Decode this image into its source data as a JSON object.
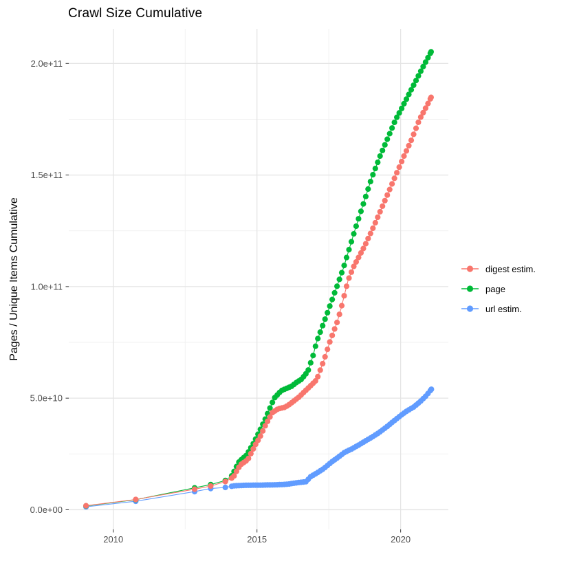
{
  "title": "Crawl Size Cumulative",
  "y_axis": {
    "title": "Pages / Unique Items Cumulative",
    "tick_labels": [
      "0.0e+00",
      "5.0e+10",
      "1.0e+11",
      "1.5e+11",
      "2.0e+11"
    ]
  },
  "x_axis": {
    "tick_labels": [
      "2010",
      "2015",
      "2020"
    ]
  },
  "legend": [
    {
      "label": "digest estim."
    },
    {
      "label": "page"
    },
    {
      "label": "url estim."
    }
  ],
  "chart_data": {
    "type": "line",
    "title": "Crawl Size Cumulative",
    "xlabel": "",
    "ylabel": "Pages / Unique Items Cumulative",
    "xlim": [
      2008.45,
      2021.66
    ],
    "ylim": [
      -8800000000.0,
      215500000000.0
    ],
    "x_major_ticks": [
      2010,
      2015,
      2020
    ],
    "x_minor_ticks": [
      2012.5,
      2017.5
    ],
    "y_major_ticks": [
      0,
      50000000000.0,
      100000000000.0,
      150000000000.0,
      200000000000.0
    ],
    "y_minor_ticks": [
      25000000000.0,
      75000000000.0,
      125000000000.0,
      175000000000.0
    ],
    "grid": true,
    "legend_position": "right",
    "point_style": {
      "radius": 4.1,
      "monthly_dot_start": 2014.12,
      "dot_interval_years": 0.0833
    },
    "colors": {
      "digest": "#F8766D",
      "page": "#00BA38",
      "url": "#619CFF"
    },
    "series": [
      {
        "name": "digest estim.",
        "color": "#F8766D",
        "points": [
          [
            2009.05,
            1800000000.0
          ],
          [
            2010.78,
            4600000000.0
          ],
          [
            2012.83,
            9200000000.0
          ],
          [
            2013.39,
            10600000000.0
          ],
          [
            2013.9,
            12600000000.0
          ],
          [
            2014.18,
            14600000000.0
          ],
          [
            2014.29,
            17300000000.0
          ],
          [
            2014.42,
            20100000000.0
          ],
          [
            2014.68,
            22400000000.0
          ],
          [
            2014.8,
            25500000000.0
          ],
          [
            2014.94,
            29000000000.0
          ],
          [
            2015.1,
            32500000000.0
          ],
          [
            2015.3,
            38000000000.0
          ],
          [
            2015.54,
            43600000000.0
          ],
          [
            2015.73,
            45200000000.0
          ],
          [
            2015.97,
            45900000000.0
          ],
          [
            2016.13,
            47200000000.0
          ],
          [
            2016.29,
            48800000000.0
          ],
          [
            2016.47,
            50600000000.0
          ],
          [
            2016.65,
            52900000000.0
          ],
          [
            2016.83,
            55100000000.0
          ],
          [
            2017.08,
            58300000000.0
          ],
          [
            2017.33,
            67000000000.0
          ],
          [
            2017.53,
            75000000000.0
          ],
          [
            2017.79,
            84100000000.0
          ],
          [
            2017.93,
            90300000000.0
          ],
          [
            2018.05,
            96700000000.0
          ],
          [
            2018.17,
            102800000000.0
          ],
          [
            2018.35,
            108600000000.0
          ],
          [
            2018.59,
            114400000000.0
          ],
          [
            2018.74,
            118000000000.0
          ],
          [
            2019.02,
            125700000000.0
          ],
          [
            2019.3,
            134000000000.0
          ],
          [
            2019.6,
            143000000000.0
          ],
          [
            2019.9,
            152000000000.0
          ],
          [
            2020.1,
            158000000000.0
          ],
          [
            2020.35,
            165000000000.0
          ],
          [
            2020.66,
            175000000000.0
          ],
          [
            2020.85,
            179500000000.0
          ],
          [
            2021.06,
            184800000000.0
          ]
        ]
      },
      {
        "name": "page",
        "color": "#00BA38",
        "points": [
          [
            2009.05,
            1700000000.0
          ],
          [
            2010.78,
            4500000000.0
          ],
          [
            2012.83,
            9800000000.0
          ],
          [
            2013.39,
            11300000000.0
          ],
          [
            2013.9,
            13100000000.0
          ],
          [
            2014.14,
            15400000000.0
          ],
          [
            2014.25,
            18500000000.0
          ],
          [
            2014.38,
            21600000000.0
          ],
          [
            2014.64,
            24500000000.0
          ],
          [
            2014.76,
            27200000000.0
          ],
          [
            2014.9,
            30300000000.0
          ],
          [
            2015.1,
            35500000000.0
          ],
          [
            2015.3,
            41000000000.0
          ],
          [
            2015.45,
            45500000000.0
          ],
          [
            2015.6,
            50000000000.0
          ],
          [
            2015.85,
            53400000000.0
          ],
          [
            2016.09,
            54700000000.0
          ],
          [
            2016.21,
            55400000000.0
          ],
          [
            2016.37,
            57000000000.0
          ],
          [
            2016.55,
            58500000000.0
          ],
          [
            2016.77,
            62000000000.0
          ],
          [
            2016.95,
            69000000000.0
          ],
          [
            2017.07,
            75000000000.0
          ],
          [
            2017.3,
            83000000000.0
          ],
          [
            2017.5,
            90000000000.0
          ],
          [
            2017.78,
            100000000000.0
          ],
          [
            2018.0,
            108000000000.0
          ],
          [
            2018.4,
            125000000000.0
          ],
          [
            2018.7,
            137000000000.0
          ],
          [
            2019.0,
            149000000000.0
          ],
          [
            2019.3,
            159000000000.0
          ],
          [
            2019.6,
            168000000000.0
          ],
          [
            2019.83,
            175000000000.0
          ],
          [
            2020.0,
            179000000000.0
          ],
          [
            2020.3,
            186500000000.0
          ],
          [
            2020.6,
            194000000000.0
          ],
          [
            2020.8,
            199000000000.0
          ],
          [
            2021.06,
            205200000000.0
          ]
        ]
      },
      {
        "name": "url estim.",
        "color": "#619CFF",
        "points": [
          [
            2009.05,
            1300000000.0
          ],
          [
            2010.78,
            3800000000.0
          ],
          [
            2012.83,
            8100000000.0
          ],
          [
            2013.39,
            9500000000.0
          ],
          [
            2013.9,
            10000000000.0
          ],
          [
            2014.2,
            10700000000.0
          ],
          [
            2014.5,
            10900000000.0
          ],
          [
            2014.8,
            11000000000.0
          ],
          [
            2015.1,
            11000000000.0
          ],
          [
            2015.4,
            11100000000.0
          ],
          [
            2015.7,
            11200000000.0
          ],
          [
            2015.9,
            11300000000.0
          ],
          [
            2016.1,
            11500000000.0
          ],
          [
            2016.45,
            12200000000.0
          ],
          [
            2016.75,
            12600000000.0
          ],
          [
            2016.81,
            14400000000.0
          ],
          [
            2017.09,
            16500000000.0
          ],
          [
            2017.33,
            18500000000.0
          ],
          [
            2017.57,
            21100000000.0
          ],
          [
            2017.81,
            23400000000.0
          ],
          [
            2018.05,
            25700000000.0
          ],
          [
            2018.29,
            27200000000.0
          ],
          [
            2018.53,
            28900000000.0
          ],
          [
            2018.77,
            30800000000.0
          ],
          [
            2019.01,
            32600000000.0
          ],
          [
            2019.25,
            34600000000.0
          ],
          [
            2019.49,
            36900000000.0
          ],
          [
            2019.73,
            39400000000.0
          ],
          [
            2019.97,
            41900000000.0
          ],
          [
            2020.21,
            44200000000.0
          ],
          [
            2020.45,
            46000000000.0
          ],
          [
            2020.69,
            48600000000.0
          ],
          [
            2020.89,
            51100000000.0
          ],
          [
            2021.07,
            54000000000.0
          ]
        ]
      }
    ]
  }
}
